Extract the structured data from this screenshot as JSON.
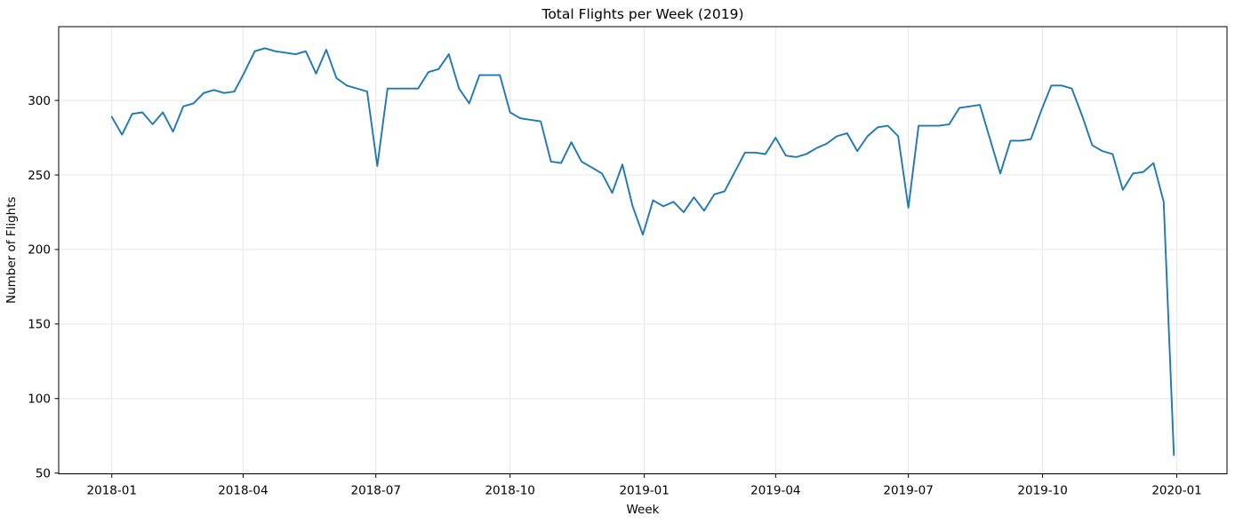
{
  "chart_data": {
    "type": "line",
    "title": "Total Flights per Week (2019)",
    "xlabel": "Week",
    "ylabel": "Number of Flights",
    "x_start": "2018-01-01",
    "x_freq": "weekly",
    "values": [
      289,
      277,
      291,
      292,
      284,
      292,
      279,
      296,
      298,
      305,
      307,
      305,
      306,
      319,
      333,
      335,
      333,
      332,
      331,
      333,
      318,
      334,
      315,
      310,
      308,
      306,
      256,
      308,
      308,
      308,
      308,
      319,
      321,
      331,
      308,
      298,
      317,
      317,
      317,
      292,
      288,
      287,
      286,
      259,
      258,
      272,
      259,
      255,
      251,
      238,
      257,
      229,
      210,
      233,
      229,
      232,
      225,
      235,
      226,
      237,
      239,
      252,
      265,
      265,
      264,
      275,
      263,
      262,
      264,
      268,
      271,
      276,
      278,
      266,
      276,
      282,
      283,
      276,
      228,
      283,
      283,
      283,
      284,
      295,
      296,
      297,
      274,
      251,
      273,
      273,
      274,
      293,
      310,
      310,
      308,
      290,
      270,
      266,
      264,
      240,
      251,
      252,
      258,
      232,
      62
    ],
    "x_ticks": [
      {
        "label": "2018-01",
        "week_index": 0
      },
      {
        "label": "2018-04",
        "week_index": 12.857
      },
      {
        "label": "2018-07",
        "week_index": 25.857
      },
      {
        "label": "2018-10",
        "week_index": 39.0
      },
      {
        "label": "2019-01",
        "week_index": 52.143
      },
      {
        "label": "2019-04",
        "week_index": 65.0
      },
      {
        "label": "2019-07",
        "week_index": 78.0
      },
      {
        "label": "2019-10",
        "week_index": 91.143
      },
      {
        "label": "2020-01",
        "week_index": 104.286
      }
    ],
    "y_ticks": [
      50,
      100,
      150,
      200,
      250,
      300
    ],
    "ylim": [
      49.5,
      349.5
    ],
    "xlim_weeks": [
      -5.2,
      109.2
    ],
    "grid": true,
    "legend": "none",
    "line_color": "#1f77b4",
    "grid_color": "#e7e7e7",
    "spine_color": "#000000",
    "background": "#ffffff"
  }
}
